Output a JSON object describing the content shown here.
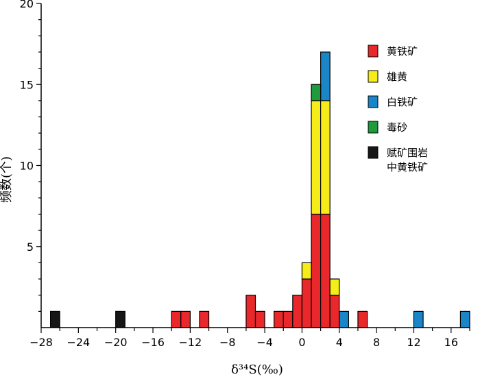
{
  "chart_data": {
    "type": "bar",
    "stacked": true,
    "bin_width": 1,
    "xlabel": "δ³⁴S(‰)",
    "ylabel": "频数(个)",
    "xlim": [
      -28,
      18
    ],
    "ylim": [
      0,
      20
    ],
    "x_ticks": [
      -28,
      -24,
      -20,
      -16,
      -12,
      -8,
      -4,
      0,
      4,
      8,
      12,
      16
    ],
    "y_ticks": [
      5,
      10,
      15,
      20
    ],
    "legend_position": "right",
    "series": [
      {
        "name": "黄铁矿",
        "color": "#e8282a",
        "bins": [
          {
            "x": -14,
            "count": 1
          },
          {
            "x": -13,
            "count": 1
          },
          {
            "x": -11,
            "count": 1
          },
          {
            "x": -6,
            "count": 2
          },
          {
            "x": -5,
            "count": 1
          },
          {
            "x": -3,
            "count": 1
          },
          {
            "x": -2,
            "count": 1
          },
          {
            "x": -1,
            "count": 2
          },
          {
            "x": 0,
            "count": 3
          },
          {
            "x": 1,
            "count": 7
          },
          {
            "x": 2,
            "count": 7
          },
          {
            "x": 3,
            "count": 2
          },
          {
            "x": 6,
            "count": 1
          }
        ]
      },
      {
        "name": "雄黄",
        "color": "#f5ec19",
        "bins": [
          {
            "x": 0,
            "count": 1
          },
          {
            "x": 1,
            "count": 7
          },
          {
            "x": 2,
            "count": 7
          },
          {
            "x": 3,
            "count": 1
          }
        ]
      },
      {
        "name": "白铁矿",
        "color": "#1a86c8",
        "bins": [
          {
            "x": 2,
            "count": 3
          },
          {
            "x": 4,
            "count": 1
          },
          {
            "x": 12,
            "count": 1
          },
          {
            "x": 17,
            "count": 1
          }
        ]
      },
      {
        "name": "毒砂",
        "color": "#1f9a3c",
        "bins": [
          {
            "x": 1,
            "count": 1
          }
        ]
      },
      {
        "name": "赋矿围岩中黄铁矿",
        "legend_lines": [
          "赋矿围岩",
          "中黄铁矿"
        ],
        "color": "#161616",
        "bins": [
          {
            "x": -27,
            "count": 1
          },
          {
            "x": -20,
            "count": 1
          }
        ]
      }
    ]
  }
}
